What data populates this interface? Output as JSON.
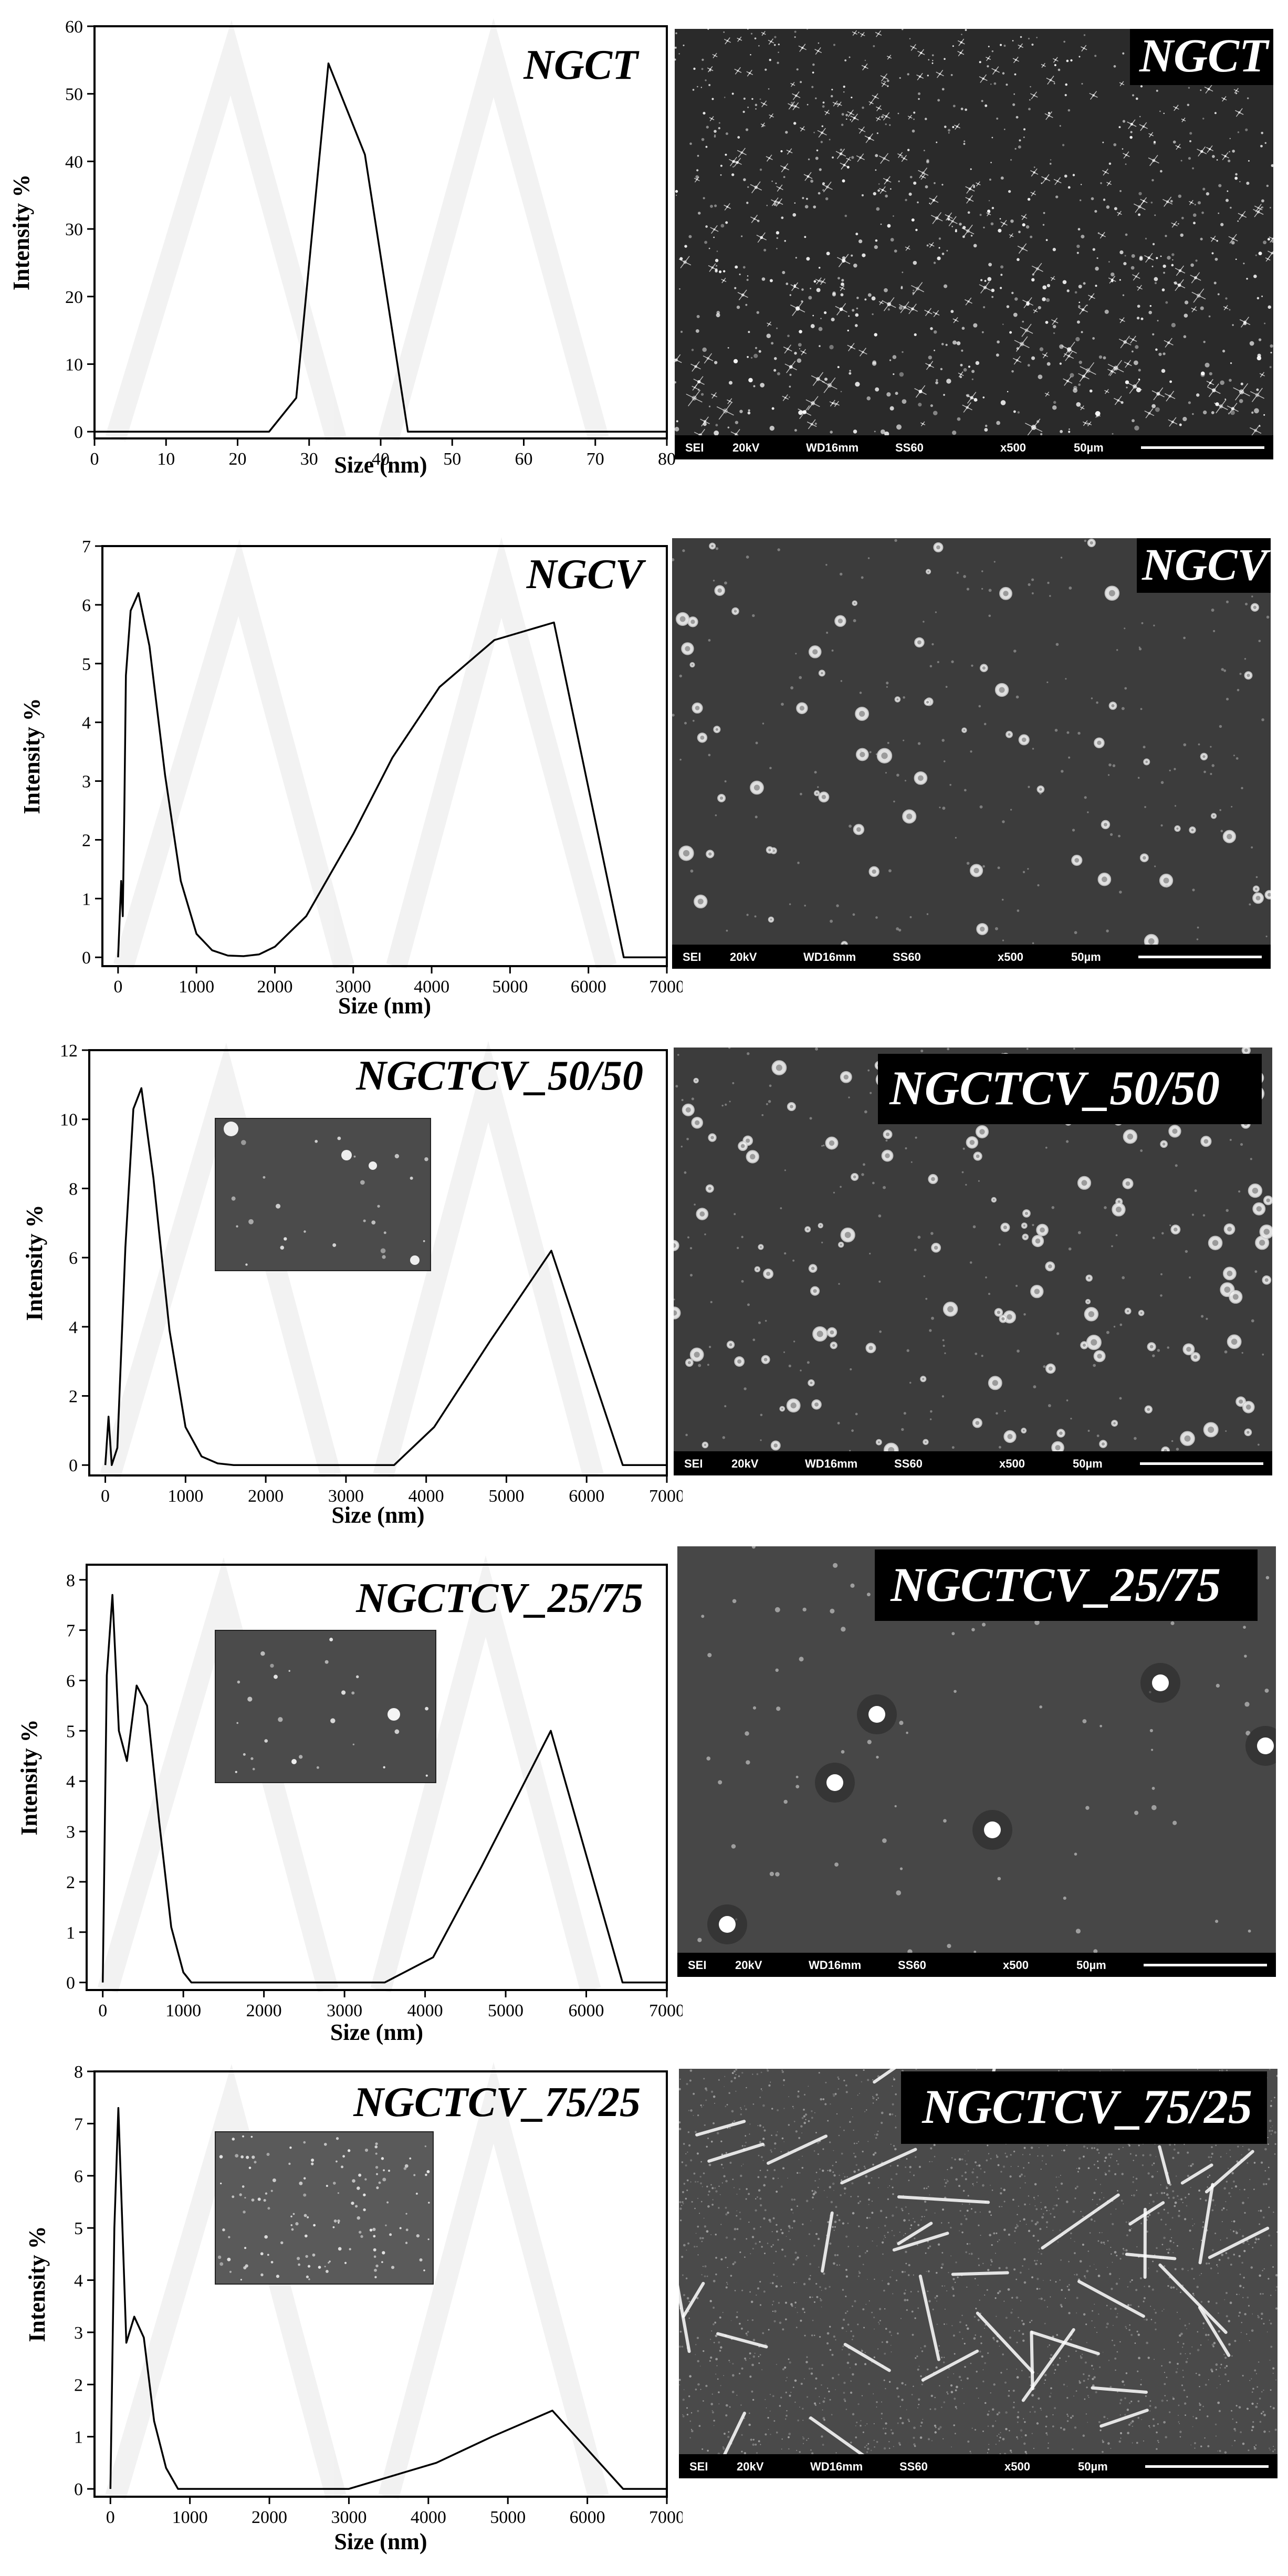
{
  "common": {
    "ylabel": "Intensity %",
    "xlabel": "Size (nm)"
  },
  "sem_footer": {
    "mode": "SEI",
    "voltage": "20kV",
    "wd": "WD16mm",
    "ss": "SS60",
    "mag": "x500",
    "scale": "50µm"
  },
  "panels": [
    {
      "id": "ngct",
      "title": "NGCT",
      "sem_label": "NGCT"
    },
    {
      "id": "ngcv",
      "title": "NGCV",
      "sem_label": "NGCV"
    },
    {
      "id": "ngctcv_50_50",
      "title": "NGCTCV_50/50",
      "sem_label": "NGCTCV_50/50"
    },
    {
      "id": "ngctcv_25_75",
      "title": "NGCTCV_25/75",
      "sem_label": "NGCTCV_25/75"
    },
    {
      "id": "ngctcv_75_25",
      "title": "NGCTCV_75/25",
      "sem_label": "NGCTCV_75/25"
    }
  ],
  "chart_data": [
    {
      "type": "line",
      "title": "NGCT",
      "xlabel": "Size (nm)",
      "ylabel": "Intensity %",
      "xlim": [
        0,
        80
      ],
      "ylim": [
        -1,
        60
      ],
      "xticks": [
        0,
        10,
        20,
        30,
        40,
        50,
        60,
        70,
        80
      ],
      "yticks": [
        0,
        10,
        20,
        30,
        40,
        50,
        60
      ],
      "x": [
        0,
        24.4,
        28.2,
        32.7,
        37.8,
        43.8,
        80
      ],
      "y": [
        0,
        0,
        5,
        54.5,
        41,
        0,
        0
      ]
    },
    {
      "type": "line",
      "title": "NGCV",
      "xlabel": "Size (nm)",
      "ylabel": "Intensity %",
      "xlim": [
        -200,
        7000
      ],
      "ylim": [
        -0.15,
        7
      ],
      "xticks": [
        0,
        1000,
        2000,
        3000,
        4000,
        5000,
        6000,
        7000
      ],
      "yticks": [
        0,
        1,
        2,
        3,
        4,
        5,
        6,
        7
      ],
      "x": [
        0,
        40,
        60,
        80,
        100,
        160,
        260,
        400,
        600,
        800,
        1000,
        1200,
        1400,
        1600,
        1800,
        2000,
        2400,
        3000,
        3500,
        4100,
        4800,
        5560,
        6450,
        7000
      ],
      "y": [
        0,
        1.3,
        0.7,
        2.5,
        4.8,
        5.9,
        6.2,
        5.3,
        3.1,
        1.3,
        0.4,
        0.12,
        0.03,
        0.02,
        0.05,
        0.18,
        0.7,
        2.1,
        3.4,
        4.6,
        5.4,
        5.7,
        0,
        0
      ]
    },
    {
      "type": "line",
      "title": "NGCTCV_50/50",
      "xlabel": "Size (nm)",
      "ylabel": "Intensity %",
      "xlim": [
        -200,
        7000
      ],
      "ylim": [
        -0.3,
        12
      ],
      "xticks": [
        0,
        1000,
        2000,
        3000,
        4000,
        5000,
        6000,
        7000
      ],
      "yticks": [
        0,
        2,
        4,
        6,
        8,
        10,
        12
      ],
      "x": [
        0,
        40,
        80,
        150,
        250,
        350,
        450,
        600,
        800,
        1000,
        1200,
        1400,
        1600,
        3600,
        4100,
        4800,
        5560,
        6450,
        7000
      ],
      "y": [
        0,
        1.4,
        0,
        0.5,
        6.3,
        10.3,
        10.9,
        8.3,
        3.9,
        1.1,
        0.25,
        0.05,
        0,
        0,
        1.1,
        3.6,
        6.2,
        0,
        0
      ],
      "inset": true
    },
    {
      "type": "line",
      "title": "NGCTCV_25/75",
      "xlabel": "Size (nm)",
      "ylabel": "Intensity %",
      "xlim": [
        -200,
        7000
      ],
      "ylim": [
        -0.15,
        8.3
      ],
      "xticks": [
        0,
        1000,
        2000,
        3000,
        4000,
        5000,
        6000,
        7000
      ],
      "yticks": [
        0,
        1,
        2,
        3,
        4,
        5,
        6,
        7,
        8
      ],
      "x": [
        0,
        50,
        120,
        200,
        300,
        420,
        550,
        700,
        850,
        1000,
        1100,
        3500,
        4100,
        4700,
        5560,
        6450,
        7000
      ],
      "y": [
        0,
        6.1,
        7.7,
        5.0,
        4.4,
        5.9,
        5.5,
        3.2,
        1.1,
        0.2,
        0,
        0,
        0.5,
        2.3,
        5.0,
        0,
        0
      ],
      "inset": true
    },
    {
      "type": "line",
      "title": "NGCTCV_75/25",
      "xlabel": "Size (nm)",
      "ylabel": "Intensity %",
      "xlim": [
        -200,
        7000
      ],
      "ylim": [
        -0.15,
        8
      ],
      "xticks": [
        0,
        1000,
        2000,
        3000,
        4000,
        5000,
        6000,
        7000
      ],
      "yticks": [
        0,
        1,
        2,
        3,
        4,
        5,
        6,
        7,
        8
      ],
      "x": [
        0,
        50,
        100,
        200,
        300,
        420,
        550,
        700,
        850,
        3000,
        4100,
        4800,
        5560,
        6450,
        7000
      ],
      "y": [
        0,
        5.0,
        7.3,
        2.8,
        3.3,
        2.9,
        1.3,
        0.4,
        0,
        0,
        0.5,
        1.0,
        1.5,
        0,
        0
      ],
      "inset": true
    }
  ]
}
